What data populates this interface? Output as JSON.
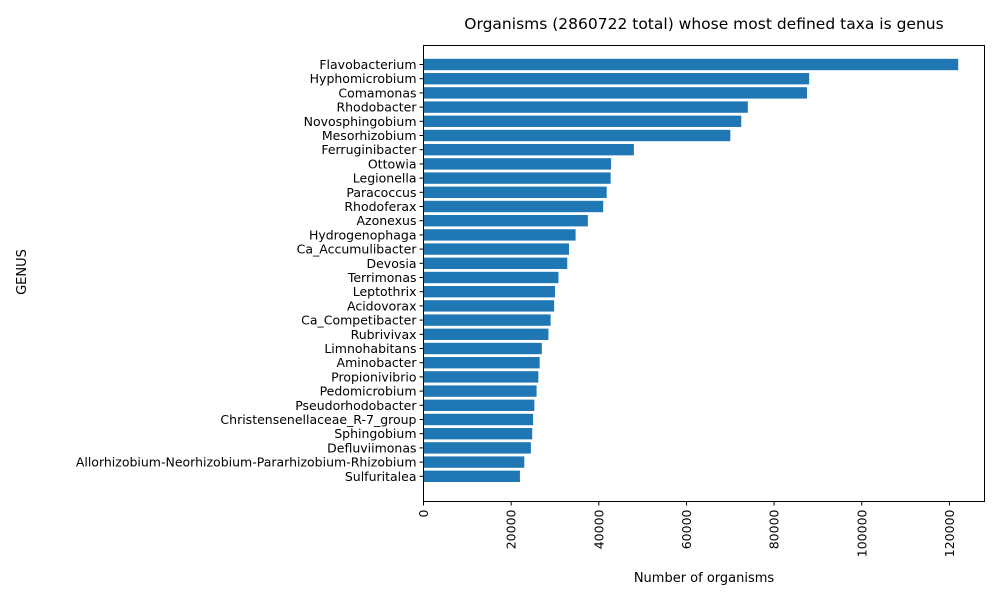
{
  "chart_data": {
    "type": "bar",
    "orientation": "horizontal",
    "title": "Organisms (2860722 total) whose most defined taxa is genus",
    "xlabel": "Number of organisms",
    "ylabel": "GENUS",
    "bar_color": "#1f77b4",
    "xlim": [
      0,
      128000
    ],
    "xticks": [
      0,
      20000,
      40000,
      60000,
      80000,
      100000,
      120000
    ],
    "xtick_rotation": "vertical",
    "grid": false,
    "legend": "none",
    "categories": [
      "Flavobacterium",
      "Hyphomicrobium",
      "Comamonas",
      "Rhodobacter",
      "Novosphingobium",
      "Mesorhizobium",
      "Ferruginibacter",
      "Ottowia",
      "Legionella",
      "Paracoccus",
      "Rhodoferax",
      "Azonexus",
      "Hydrogenophaga",
      "Ca_Accumulibacter",
      "Devosia",
      "Terrimonas",
      "Leptothrix",
      "Acidovorax",
      "Ca_Competibacter",
      "Rubrivivax",
      "Limnohabitans",
      "Aminobacter",
      "Propionivibrio",
      "Pedomicrobium",
      "Pseudorhodobacter",
      "Christensenellaceae_R-7_group",
      "Sphingobium",
      "Defluviimonas",
      "Allorhizobium-Neorhizobium-Pararhizobium-Rhizobium",
      "Sulfuritalea"
    ],
    "values": [
      122000,
      88000,
      87500,
      74000,
      72500,
      70000,
      48000,
      42800,
      42700,
      41800,
      41000,
      37500,
      34700,
      33200,
      32800,
      30800,
      30000,
      29800,
      29000,
      28500,
      27000,
      26500,
      26200,
      25800,
      25300,
      25000,
      24800,
      24500,
      23000,
      22000
    ]
  }
}
